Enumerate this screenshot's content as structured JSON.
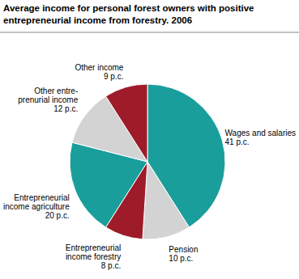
{
  "chart_data": {
    "type": "pie",
    "title": "Average income for personal forest owners with positive\nentrepreneurial income from forestry. 2006",
    "categories": [
      "Wages and salaries",
      "Pension",
      "Entrepreneurial\nincome forestry",
      "Entrepreneurial\nincome agriculture",
      "Other entre-\nprenurial income",
      "Other income"
    ],
    "values": [
      41,
      10,
      8,
      20,
      12,
      9
    ],
    "value_labels": [
      "41 p.c.",
      "10 p.c.",
      "8 p.c.",
      "20 p.c.",
      "12 p.c.",
      "9 p.c."
    ],
    "colors": [
      "#1a9e9c",
      "#d3d3d3",
      "#9e1b2a",
      "#1a9e9c",
      "#d3d3d3",
      "#9e1b2a"
    ],
    "data_labels": true
  }
}
